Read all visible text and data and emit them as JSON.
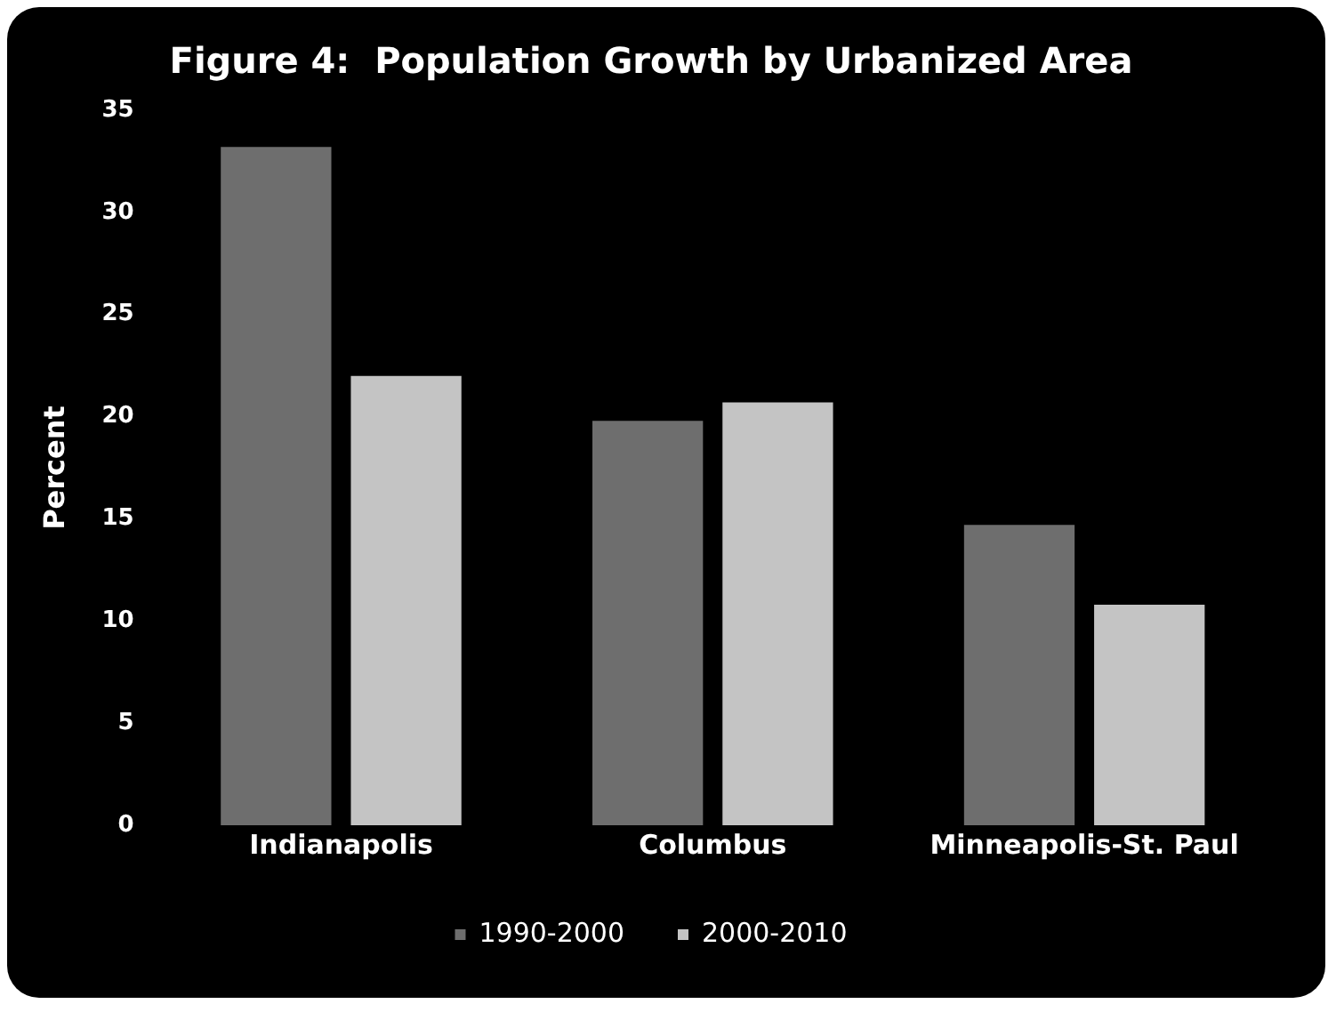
{
  "chart_data": {
    "type": "bar",
    "title": "Figure 4:  Population Growth by Urbanized Area",
    "ylabel": "Percent",
    "categories": [
      "Indianapolis",
      "Columbus",
      "Minneapolis-St. Paul"
    ],
    "series": [
      {
        "name": "1990-2000",
        "color": "#6e6e6e",
        "values": [
          33.2,
          19.8,
          14.7
        ]
      },
      {
        "name": "2000-2010",
        "color": "#c4c4c4",
        "values": [
          22,
          20.7,
          10.8
        ]
      }
    ],
    "ylim": [
      0,
      35
    ],
    "yticks": [
      0,
      5,
      10,
      15,
      20,
      25,
      30,
      35
    ],
    "grid": false,
    "legend": "bottom"
  }
}
